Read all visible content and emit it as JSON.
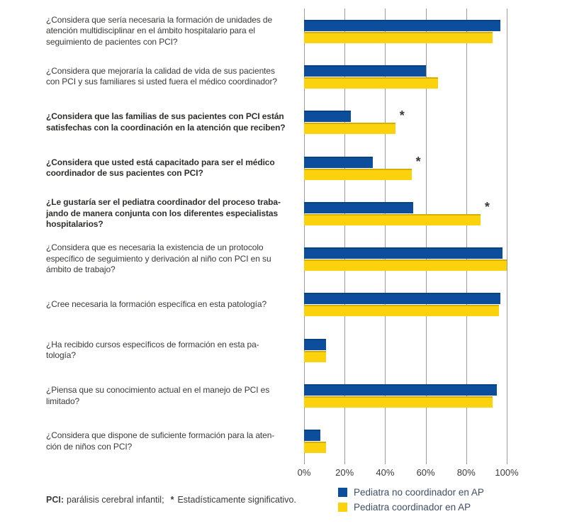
{
  "chart_data": {
    "type": "bar",
    "orientation": "horizontal",
    "title": "",
    "xlabel": "",
    "ylabel": "",
    "xlim": [
      0,
      100
    ],
    "grid": "vertical",
    "legend_position": "bottom-right",
    "x_axis": {
      "ticks": [
        "0%",
        "20%",
        "40%",
        "60%",
        "80%",
        "100%"
      ]
    },
    "significance_symbol": "*",
    "series": [
      {
        "name": "Pediatra no coordinador en AP",
        "color": "#0d4e9c"
      },
      {
        "name": "Pediatra coordinador en AP",
        "color": "#fbd20b"
      }
    ],
    "questions": [
      {
        "label": "¿Considera que sería necesaria la formación de unidades de\natención multidisciplinar en el ámbito hospitalario para el\nseguimiento de pacientes con PCI?",
        "bold": false,
        "no_coordinador": 97,
        "coordinador": 93,
        "significant": false
      },
      {
        "label": "¿Considera que mejoraría la calidad de vida de sus pacientes\ncon PCI y sus familiares si usted fuera el médico coordinador?",
        "bold": false,
        "no_coordinador": 60,
        "coordinador": 66,
        "significant": false
      },
      {
        "label": "¿Considera que las familias de sus pacientes con PCI están\nsatisfechas con la coordinación en la atención que reciben?",
        "bold": true,
        "no_coordinador": 23,
        "coordinador": 45,
        "significant": true
      },
      {
        "label": "¿Considera que usted está capacitado para ser el médico\ncoordinador de sus pacientes con PCI?",
        "bold": true,
        "no_coordinador": 34,
        "coordinador": 53,
        "significant": true
      },
      {
        "label": "¿Le gustaría ser el pediatra coordinador del proceso traba-\njando de manera conjunta con los diferentes especialistas\nhospitalarios?",
        "bold": true,
        "no_coordinador": 54,
        "coordinador": 87,
        "significant": true
      },
      {
        "label": "¿Considera que es necesaria la existencia de un protocolo\nespecífico de seguimiento y derivación al niño con PCI en su\námbito de trabajo?",
        "bold": false,
        "no_coordinador": 98,
        "coordinador": 100,
        "significant": false
      },
      {
        "label": "¿Cree necesaria la formación específica en esta patología?",
        "bold": false,
        "no_coordinador": 97,
        "coordinador": 96,
        "significant": false
      },
      {
        "label": "¿Ha recibido cursos específicos de formación en esta pa-\ntología?",
        "bold": false,
        "no_coordinador": 11,
        "coordinador": 11,
        "significant": false
      },
      {
        "label": "¿Piensa que su conocimiento actual en el manejo de PCI es\nlimitado?",
        "bold": false,
        "no_coordinador": 95,
        "coordinador": 93,
        "significant": false
      },
      {
        "label": "¿Considera que dispone de suficiente formación para la aten-\nción de niños con PCI?",
        "bold": false,
        "no_coordinador": 8,
        "coordinador": 11,
        "significant": false
      }
    ]
  },
  "footnote": {
    "term": "PCI:",
    "definition": "parálisis cerebral infantil;",
    "symbol": "*",
    "note": "Estadísticamente significativo."
  },
  "colors": {
    "bar_no_coordinador": "#0d4e9c",
    "bar_coordinador": "#fbd20b",
    "gridline": "#9c9c9c",
    "text": "#3a3a39",
    "legend_text": "#3e4f66"
  }
}
